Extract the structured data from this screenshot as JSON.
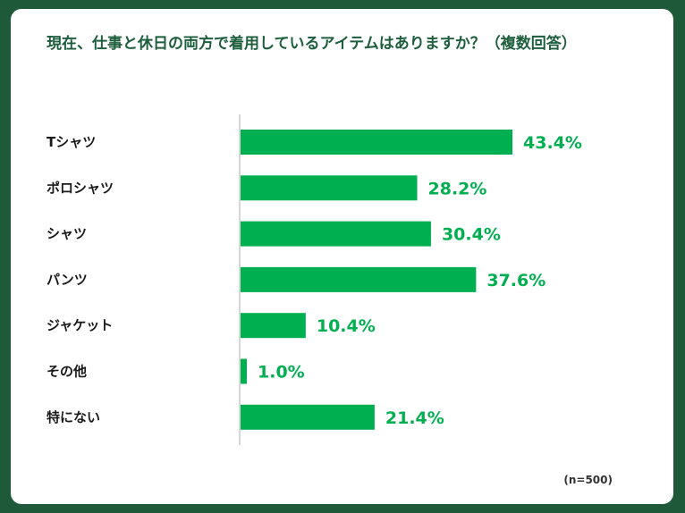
{
  "chart_data": {
    "type": "bar",
    "orientation": "horizontal",
    "title": "現在、仕事と休日の両方で着用しているアイテムはありますか？（複数回答）",
    "categories": [
      "Tシャツ",
      "ポロシャツ",
      "シャツ",
      "パンツ",
      "ジャケット",
      "その他",
      "特にない"
    ],
    "values": [
      43.4,
      28.2,
      30.4,
      37.6,
      10.4,
      1.0,
      21.4
    ],
    "value_labels": [
      "43.4%",
      "28.2%",
      "30.4%",
      "37.6%",
      "10.4%",
      "1.0%",
      "21.4%"
    ],
    "unit": "%",
    "bar_color": "#00b050",
    "label_color": "#00b050",
    "sample_note": "(n=500)"
  }
}
